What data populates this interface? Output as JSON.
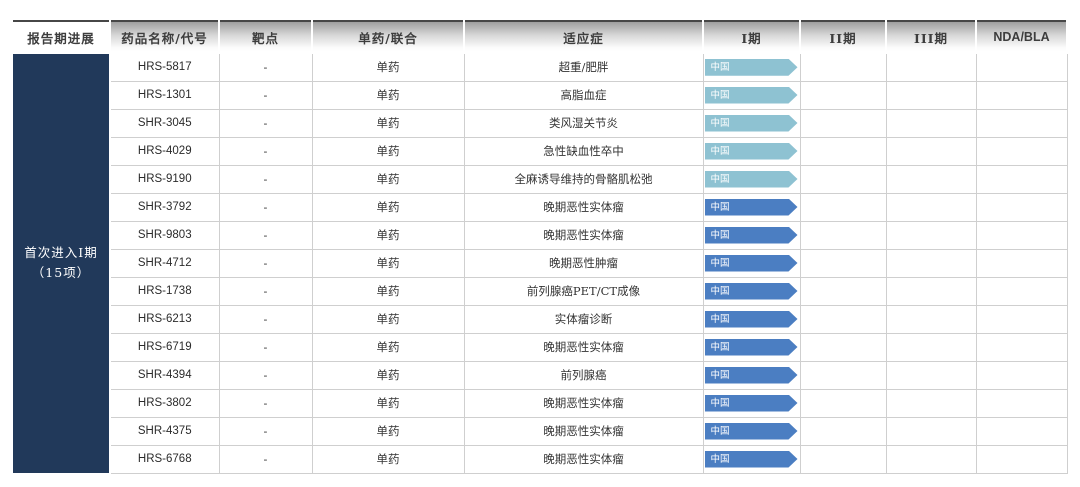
{
  "colors": {
    "group_bg": "#21395A",
    "phase_light": "#8EC2D2",
    "phase_dark": "#4B7EC2",
    "header_top_rule": "#474747"
  },
  "table": {
    "headers": [
      "报告期进展",
      "药品名称/代号",
      "靶点",
      "单药/联合",
      "适应症",
      "I期",
      "II期",
      "III期",
      "NDA/BLA"
    ],
    "group_label": {
      "line1": "首次进入Ⅰ期",
      "line2": "（15项）"
    },
    "phase1_badge_label": "中国",
    "rows": [
      {
        "drug": "HRS-5817",
        "target": "-",
        "regimen": "单药",
        "indication": "超重/肥胖",
        "phase1": {
          "label": "中国",
          "style": "light"
        },
        "phase2": "",
        "phase3": "",
        "nda": ""
      },
      {
        "drug": "HRS-1301",
        "target": "-",
        "regimen": "单药",
        "indication": "高脂血症",
        "phase1": {
          "label": "中国",
          "style": "light"
        },
        "phase2": "",
        "phase3": "",
        "nda": ""
      },
      {
        "drug": "SHR-3045",
        "target": "-",
        "regimen": "单药",
        "indication": "类风湿关节炎",
        "phase1": {
          "label": "中国",
          "style": "light"
        },
        "phase2": "",
        "phase3": "",
        "nda": ""
      },
      {
        "drug": "HRS-4029",
        "target": "-",
        "regimen": "单药",
        "indication": "急性缺血性卒中",
        "phase1": {
          "label": "中国",
          "style": "light"
        },
        "phase2": "",
        "phase3": "",
        "nda": ""
      },
      {
        "drug": "HRS-9190",
        "target": "-",
        "regimen": "单药",
        "indication": "全麻诱导维持的骨骼肌松弛",
        "phase1": {
          "label": "中国",
          "style": "light"
        },
        "phase2": "",
        "phase3": "",
        "nda": ""
      },
      {
        "drug": "SHR-3792",
        "target": "-",
        "regimen": "单药",
        "indication": "晚期恶性实体瘤",
        "phase1": {
          "label": "中国",
          "style": "dark"
        },
        "phase2": "",
        "phase3": "",
        "nda": ""
      },
      {
        "drug": "SHR-9803",
        "target": "-",
        "regimen": "单药",
        "indication": "晚期恶性实体瘤",
        "phase1": {
          "label": "中国",
          "style": "dark"
        },
        "phase2": "",
        "phase3": "",
        "nda": ""
      },
      {
        "drug": "SHR-4712",
        "target": "-",
        "regimen": "单药",
        "indication": "晚期恶性肿瘤",
        "phase1": {
          "label": "中国",
          "style": "dark"
        },
        "phase2": "",
        "phase3": "",
        "nda": ""
      },
      {
        "drug": "HRS-1738",
        "target": "-",
        "regimen": "单药",
        "indication": "前列腺癌PET/CT成像",
        "phase1": {
          "label": "中国",
          "style": "dark"
        },
        "phase2": "",
        "phase3": "",
        "nda": ""
      },
      {
        "drug": "HRS-6213",
        "target": "-",
        "regimen": "单药",
        "indication": "实体瘤诊断",
        "phase1": {
          "label": "中国",
          "style": "dark"
        },
        "phase2": "",
        "phase3": "",
        "nda": ""
      },
      {
        "drug": "HRS-6719",
        "target": "-",
        "regimen": "单药",
        "indication": "晚期恶性实体瘤",
        "phase1": {
          "label": "中国",
          "style": "dark"
        },
        "phase2": "",
        "phase3": "",
        "nda": ""
      },
      {
        "drug": "SHR-4394",
        "target": "-",
        "regimen": "单药",
        "indication": "前列腺癌",
        "phase1": {
          "label": "中国",
          "style": "dark"
        },
        "phase2": "",
        "phase3": "",
        "nda": ""
      },
      {
        "drug": "HRS-3802",
        "target": "-",
        "regimen": "单药",
        "indication": "晚期恶性实体瘤",
        "phase1": {
          "label": "中国",
          "style": "dark"
        },
        "phase2": "",
        "phase3": "",
        "nda": ""
      },
      {
        "drug": "SHR-4375",
        "target": "-",
        "regimen": "单药",
        "indication": "晚期恶性实体瘤",
        "phase1": {
          "label": "中国",
          "style": "dark"
        },
        "phase2": "",
        "phase3": "",
        "nda": ""
      },
      {
        "drug": "HRS-6768",
        "target": "-",
        "regimen": "单药",
        "indication": "晚期恶性实体瘤",
        "phase1": {
          "label": "中国",
          "style": "dark"
        },
        "phase2": "",
        "phase3": "",
        "nda": ""
      }
    ]
  }
}
